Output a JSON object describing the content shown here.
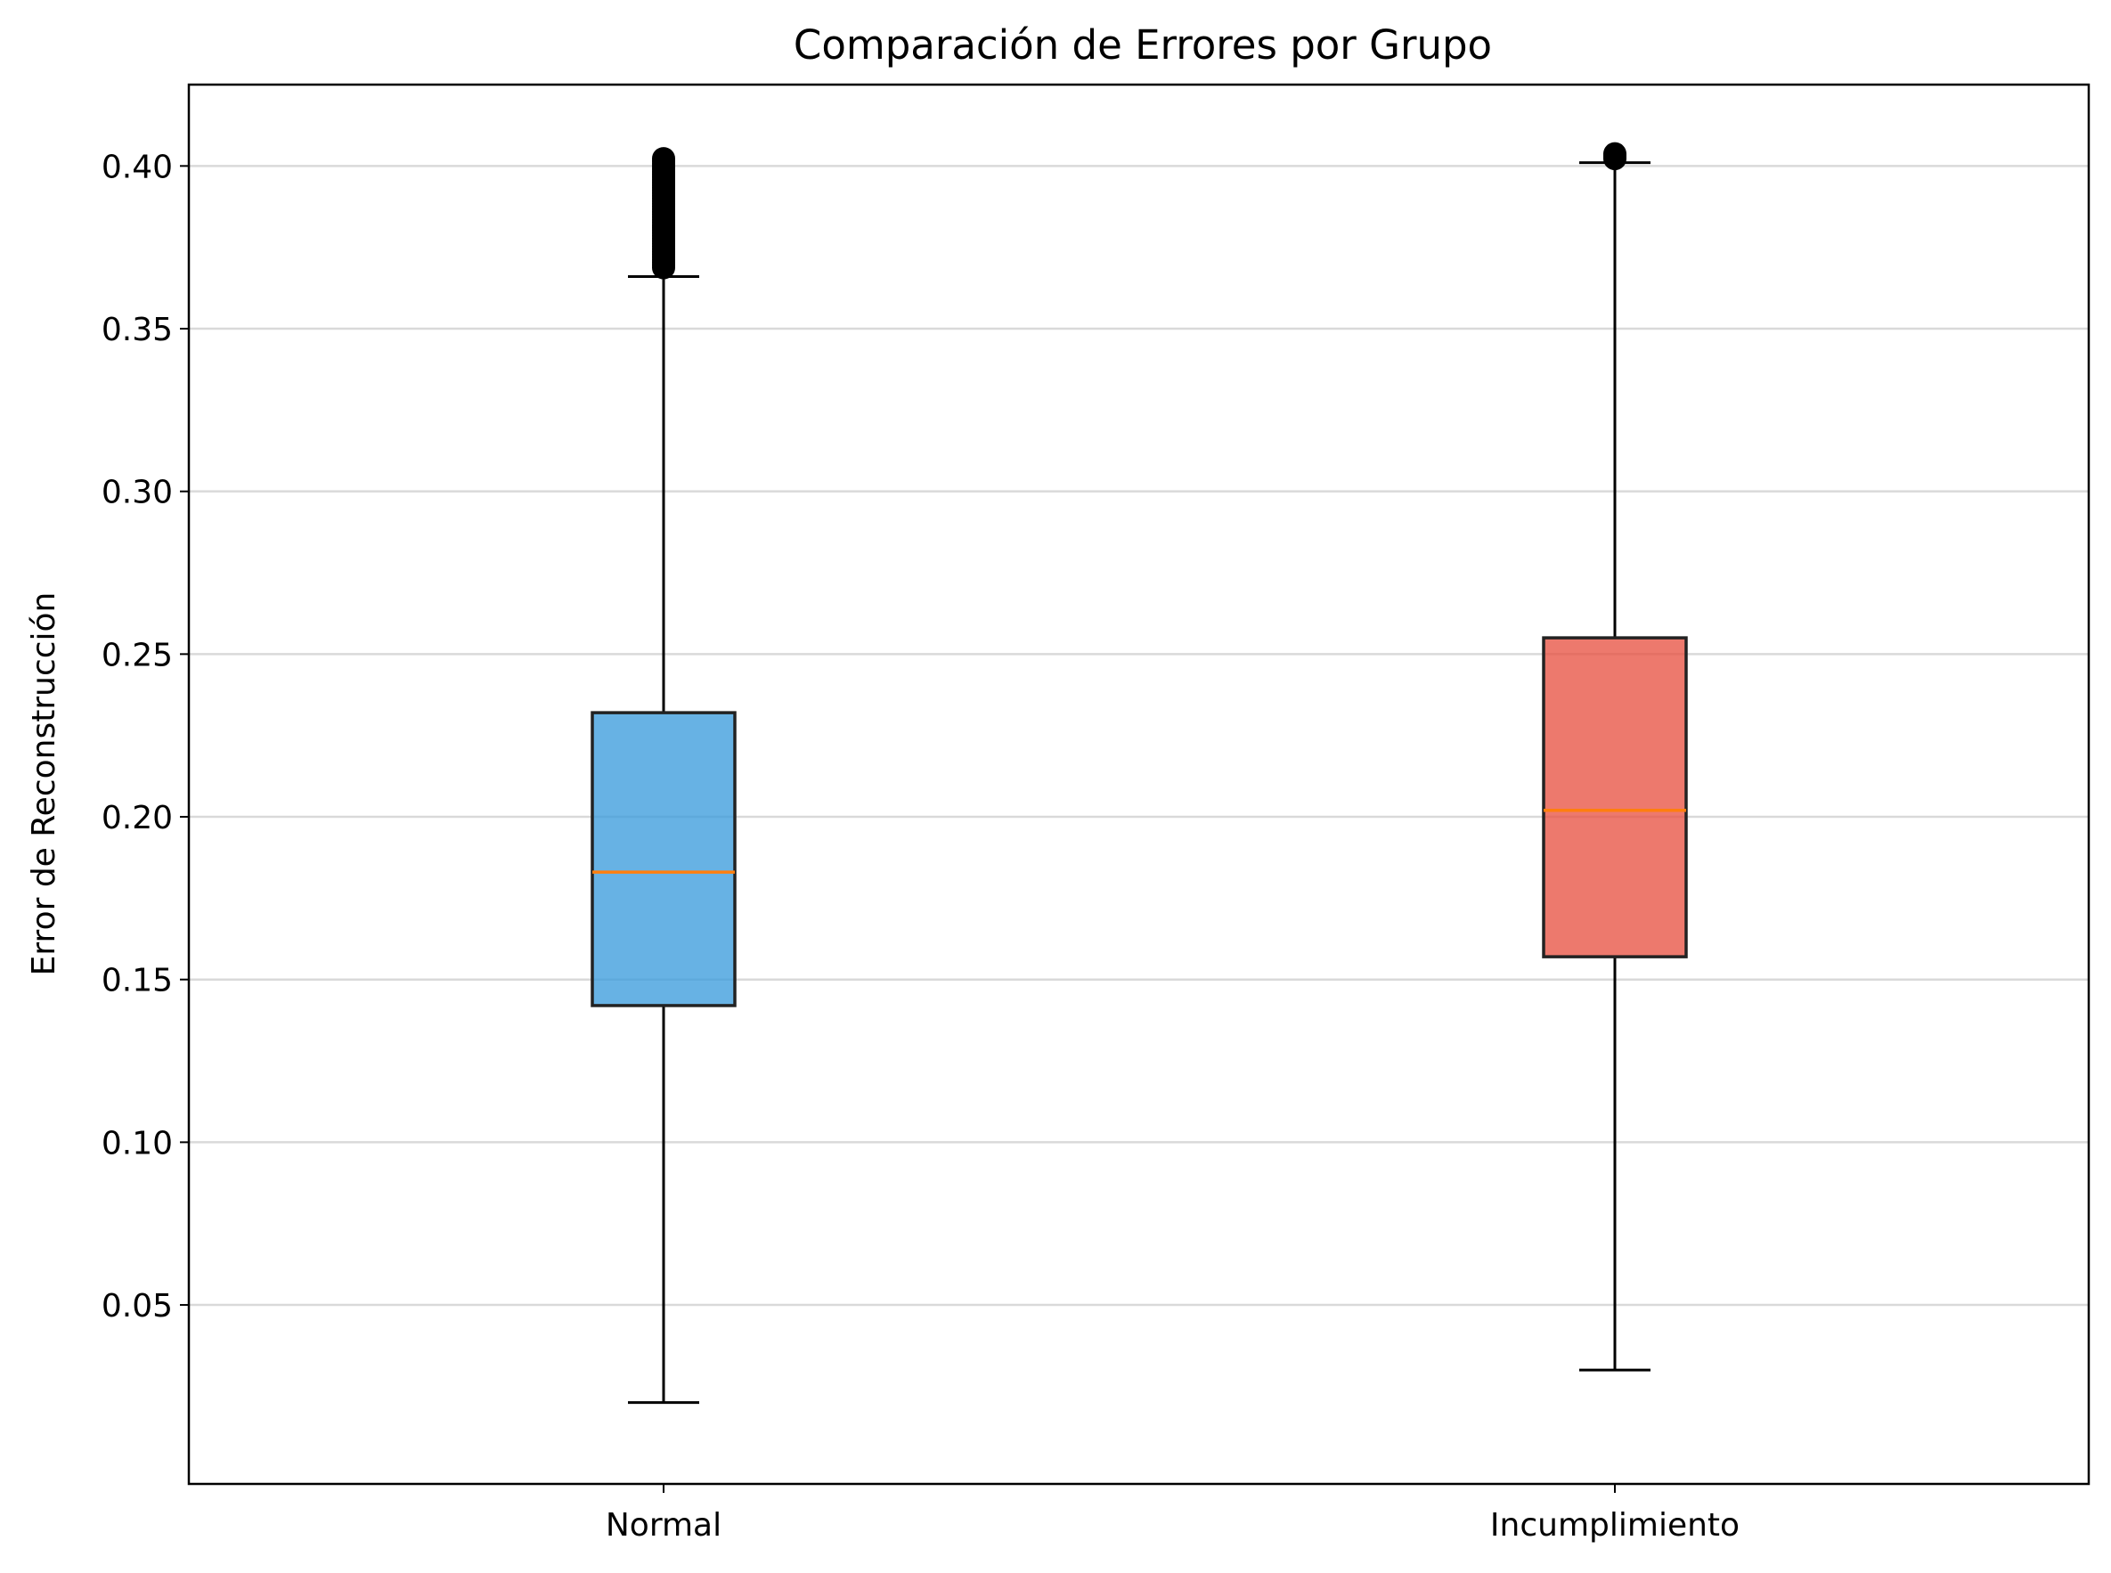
{
  "chart_data": {
    "type": "box",
    "title": "Comparación de Errores por Grupo",
    "xlabel": "",
    "ylabel": "Error de Reconstrucción",
    "ylim": [
      -0.005,
      0.425
    ],
    "yticks": [
      0.05,
      0.1,
      0.15,
      0.2,
      0.25,
      0.3,
      0.35,
      0.4
    ],
    "ytick_labels": [
      "0.05",
      "0.10",
      "0.15",
      "0.20",
      "0.25",
      "0.30",
      "0.35",
      "0.40"
    ],
    "grid": "y",
    "categories": [
      "Normal",
      "Incumplimiento"
    ],
    "series": [
      {
        "whisker_low": 0.02,
        "q1": 0.142,
        "median": 0.183,
        "q3": 0.232,
        "whisker_high": 0.366,
        "outlier_range": [
          0.366,
          0.405
        ],
        "color": "#3498db"
      },
      {
        "whisker_low": 0.03,
        "q1": 0.157,
        "median": 0.202,
        "q3": 0.255,
        "whisker_high": 0.401,
        "outlier_range": [
          0.401,
          0.405
        ],
        "color": "#e74c3c"
      }
    ],
    "median_color": "#ff7f0e",
    "legend": "none"
  }
}
